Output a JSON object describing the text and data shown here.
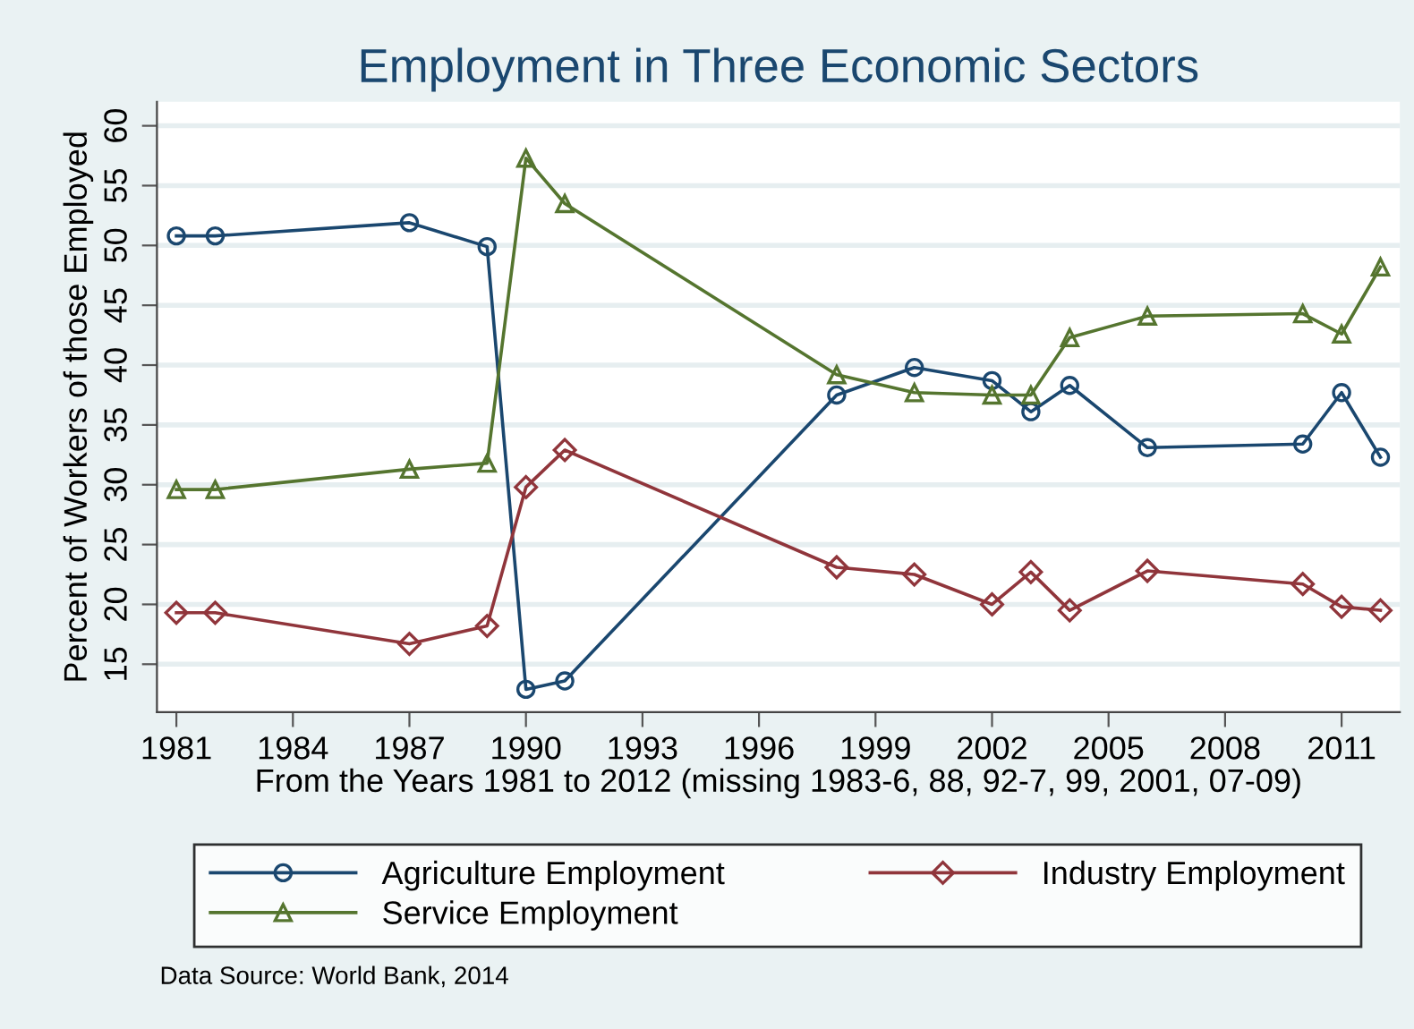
{
  "chart_data": {
    "type": "line",
    "title": "Employment in Three Economic Sectors",
    "xlabel": "From the Years 1981 to 2012 (missing 1983-6, 88, 92-7, 99, 2001, 07-09)",
    "ylabel": "Percent of Workers of those Employed",
    "x": [
      1981,
      1982,
      1987,
      1989,
      1990,
      1991,
      1998,
      2000,
      2002,
      2003,
      2004,
      2006,
      2010,
      2011,
      2012
    ],
    "series": [
      {
        "name": "Agriculture Employment",
        "color": "#1a476f",
        "marker": "circle",
        "values": [
          50.8,
          50.8,
          51.9,
          49.9,
          12.9,
          13.6,
          37.5,
          39.8,
          38.7,
          36.1,
          38.3,
          33.1,
          33.4,
          37.7,
          32.3
        ]
      },
      {
        "name": "Industry Employment",
        "color": "#90353b",
        "marker": "diamond",
        "values": [
          19.3,
          19.3,
          16.7,
          18.2,
          29.8,
          32.9,
          23.1,
          22.5,
          20.0,
          22.7,
          19.5,
          22.8,
          21.7,
          19.8,
          19.5
        ]
      },
      {
        "name": "Service Employment",
        "color": "#55752f",
        "marker": "triangle",
        "values": [
          29.6,
          29.6,
          31.3,
          31.8,
          57.3,
          53.5,
          39.2,
          37.7,
          37.5,
          37.5,
          42.3,
          44.1,
          44.3,
          42.6,
          48.2
        ]
      }
    ],
    "xlim": [
      1980.5,
      2012.5
    ],
    "xticks": [
      1981,
      1984,
      1987,
      1990,
      1993,
      1996,
      1999,
      2002,
      2005,
      2008,
      2011
    ],
    "ylim": [
      11,
      62
    ],
    "yticks": [
      15,
      20,
      25,
      30,
      35,
      40,
      45,
      50,
      55,
      60
    ],
    "grid": "y",
    "legend": "bottom",
    "line_style": "solid",
    "annotations": [
      "Data Source: World Bank, 2014"
    ]
  }
}
